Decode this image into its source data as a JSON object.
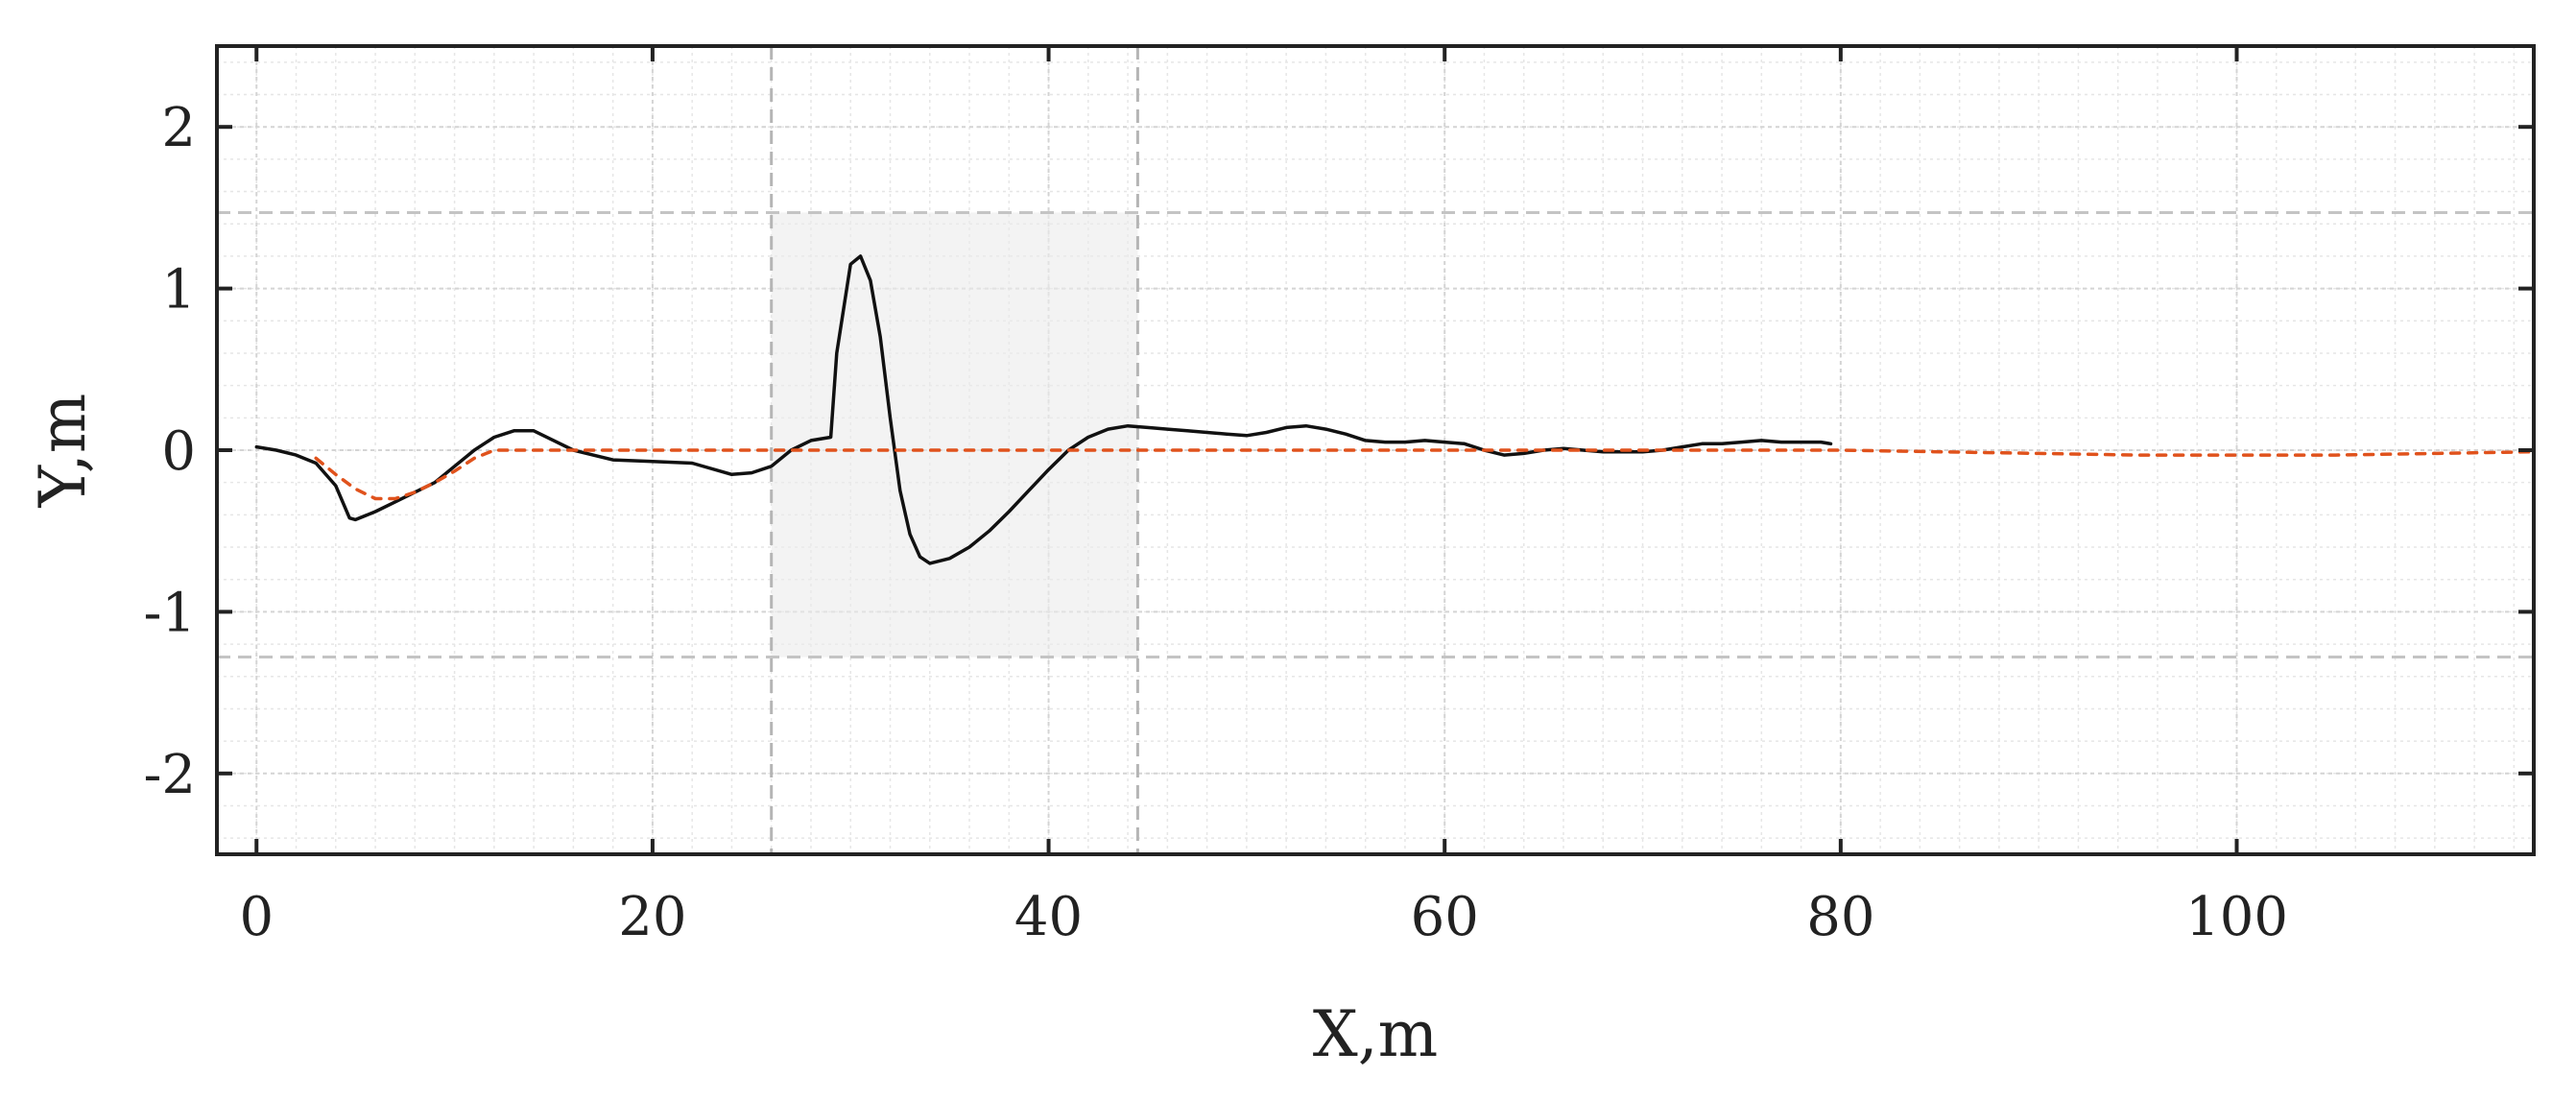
{
  "chart_data": {
    "type": "line",
    "title": "",
    "xlabel": "X,m",
    "ylabel": "Y,m",
    "xlim": [
      -2,
      115
    ],
    "ylim": [
      -2.5,
      2.5
    ],
    "x_ticks": [
      0,
      20,
      40,
      60,
      80,
      100
    ],
    "x_tick_labels": [
      "0",
      "20",
      "40",
      "60",
      "80",
      "100"
    ],
    "y_ticks": [
      2,
      1,
      0,
      -1,
      -2
    ],
    "y_tick_labels": [
      "2",
      "1",
      "0",
      "-1",
      "-2"
    ],
    "grid": true,
    "highlight_region": {
      "x": [
        26,
        44.5
      ],
      "y": [
        -1.28,
        1.47
      ]
    },
    "reference_lines": {
      "vertical_x": [
        26,
        44.5
      ],
      "horizontal_y": [
        1.47,
        -1.28
      ]
    },
    "series": [
      {
        "style": "solid",
        "color": "#111111",
        "points": [
          [
            0,
            0.02
          ],
          [
            1,
            0.0
          ],
          [
            2,
            -0.03
          ],
          [
            3,
            -0.08
          ],
          [
            4,
            -0.22
          ],
          [
            4.7,
            -0.42
          ],
          [
            5,
            -0.43
          ],
          [
            6,
            -0.38
          ],
          [
            7,
            -0.32
          ],
          [
            8,
            -0.26
          ],
          [
            9,
            -0.2
          ],
          [
            10,
            -0.1
          ],
          [
            11,
            0.0
          ],
          [
            12,
            0.08
          ],
          [
            13,
            0.12
          ],
          [
            14,
            0.12
          ],
          [
            15,
            0.06
          ],
          [
            16,
            0.0
          ],
          [
            17,
            -0.03
          ],
          [
            18,
            -0.06
          ],
          [
            20,
            -0.07
          ],
          [
            22,
            -0.08
          ],
          [
            24,
            -0.15
          ],
          [
            25,
            -0.14
          ],
          [
            26,
            -0.1
          ],
          [
            27,
            0.0
          ],
          [
            28,
            0.06
          ],
          [
            29,
            0.08
          ],
          [
            29.3,
            0.6
          ],
          [
            30,
            1.15
          ],
          [
            30.5,
            1.2
          ],
          [
            31,
            1.05
          ],
          [
            31.5,
            0.7
          ],
          [
            32,
            0.2
          ],
          [
            32.5,
            -0.25
          ],
          [
            33,
            -0.52
          ],
          [
            33.5,
            -0.66
          ],
          [
            34,
            -0.7
          ],
          [
            35,
            -0.67
          ],
          [
            36,
            -0.6
          ],
          [
            37,
            -0.5
          ],
          [
            38,
            -0.38
          ],
          [
            39,
            -0.25
          ],
          [
            40,
            -0.12
          ],
          [
            41,
            0.0
          ],
          [
            42,
            0.08
          ],
          [
            43,
            0.13
          ],
          [
            44,
            0.15
          ],
          [
            45,
            0.14
          ],
          [
            46,
            0.13
          ],
          [
            47,
            0.12
          ],
          [
            48,
            0.11
          ],
          [
            49,
            0.1
          ],
          [
            50,
            0.09
          ],
          [
            51,
            0.11
          ],
          [
            52,
            0.14
          ],
          [
            53,
            0.15
          ],
          [
            54,
            0.13
          ],
          [
            55,
            0.1
          ],
          [
            56,
            0.06
          ],
          [
            57,
            0.05
          ],
          [
            58,
            0.05
          ],
          [
            59,
            0.06
          ],
          [
            60,
            0.05
          ],
          [
            61,
            0.04
          ],
          [
            62,
            0.0
          ],
          [
            63,
            -0.03
          ],
          [
            64,
            -0.02
          ],
          [
            65,
            0.0
          ],
          [
            66,
            0.01
          ],
          [
            67,
            0.0
          ],
          [
            68,
            -0.01
          ],
          [
            69,
            -0.01
          ],
          [
            70,
            -0.01
          ],
          [
            71,
            0.0
          ],
          [
            72,
            0.02
          ],
          [
            73,
            0.04
          ],
          [
            74,
            0.04
          ],
          [
            75,
            0.05
          ],
          [
            76,
            0.06
          ],
          [
            77,
            0.05
          ],
          [
            78,
            0.05
          ],
          [
            79,
            0.05
          ],
          [
            79.5,
            0.04
          ]
        ]
      },
      {
        "style": "dashed",
        "color": "#e0521c",
        "points": [
          [
            3,
            -0.05
          ],
          [
            4,
            -0.15
          ],
          [
            5,
            -0.24
          ],
          [
            6,
            -0.3
          ],
          [
            7,
            -0.3
          ],
          [
            8,
            -0.26
          ],
          [
            9,
            -0.2
          ],
          [
            10,
            -0.13
          ],
          [
            11,
            -0.05
          ],
          [
            12,
            0.0
          ],
          [
            15,
            0.0
          ],
          [
            20,
            0.0
          ],
          [
            30,
            0.0
          ],
          [
            40,
            0.0
          ],
          [
            50,
            0.0
          ],
          [
            60,
            0.0
          ],
          [
            70,
            0.0
          ],
          [
            80,
            0.0
          ],
          [
            85,
            -0.01
          ],
          [
            90,
            -0.02
          ],
          [
            95,
            -0.03
          ],
          [
            100,
            -0.03
          ],
          [
            105,
            -0.03
          ],
          [
            110,
            -0.02
          ],
          [
            115,
            -0.01
          ]
        ]
      }
    ]
  }
}
